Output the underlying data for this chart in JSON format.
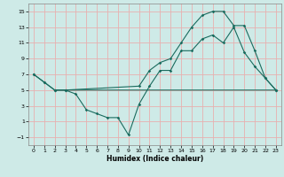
{
  "xlabel": "Humidex (Indice chaleur)",
  "bg_color": "#ceeae7",
  "grid_color": "#e8b0b0",
  "line_color": "#1a6b5e",
  "xlim": [
    -0.5,
    23.5
  ],
  "ylim": [
    -2,
    16
  ],
  "yticks": [
    -1,
    1,
    3,
    5,
    7,
    9,
    11,
    13,
    15
  ],
  "xticks": [
    0,
    1,
    2,
    3,
    4,
    5,
    6,
    7,
    8,
    9,
    10,
    11,
    12,
    13,
    14,
    15,
    16,
    17,
    18,
    19,
    20,
    21,
    22,
    23
  ],
  "line1_x": [
    0,
    1,
    2,
    3,
    4,
    5,
    6,
    7,
    8,
    9,
    10,
    11,
    12,
    13,
    14,
    15,
    16,
    17,
    18,
    19,
    20,
    21,
    22,
    23
  ],
  "line1_y": [
    7,
    6,
    5,
    5,
    4.5,
    2.5,
    2,
    1.5,
    1.5,
    -0.7,
    3.2,
    5.5,
    7.5,
    7.5,
    10,
    10,
    11.5,
    12,
    11,
    13,
    9.8,
    8,
    6.5,
    5
  ],
  "line2_x": [
    0,
    1,
    2,
    3,
    23
  ],
  "line2_y": [
    7,
    6,
    5,
    5,
    5
  ],
  "line3_x": [
    2,
    3,
    10,
    11,
    12,
    13,
    14,
    15,
    16,
    17,
    18,
    19,
    20,
    21,
    22,
    23
  ],
  "line3_y": [
    5,
    5,
    5.5,
    7.5,
    8.5,
    9,
    11,
    13,
    14.5,
    15,
    15,
    13.2,
    13.2,
    10,
    6.5,
    5
  ]
}
